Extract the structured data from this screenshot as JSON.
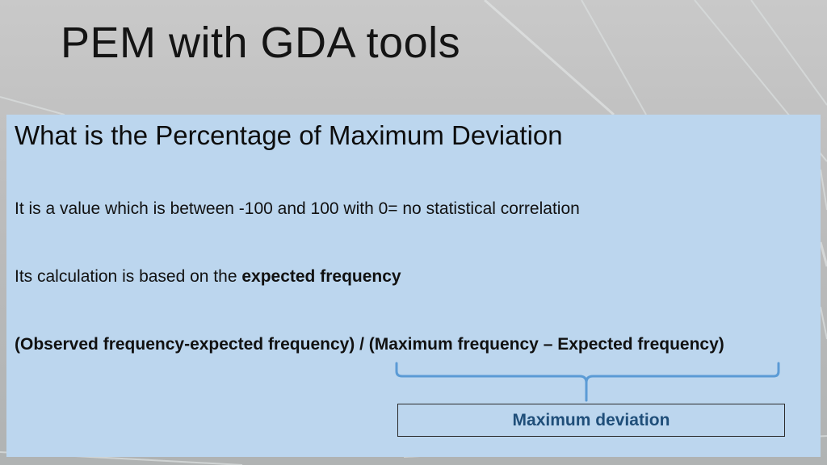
{
  "slide": {
    "title": "PEM with GDA tools"
  },
  "content": {
    "heading": "What is the Percentage of Maximum Deviation",
    "line1": "It is a value which is between -100 and 100 with 0= no statistical correlation",
    "line2_prefix": "Its calculation is based on the ",
    "line2_bold": "expected frequency",
    "formula": "(Observed frequency-expected frequency) / (Maximum frequency – Expected frequency)",
    "brace_label": "Maximum deviation"
  },
  "colors": {
    "box_background": "#bcd6ee",
    "brace": "#5b9bd5",
    "label": "#1f4e79"
  }
}
